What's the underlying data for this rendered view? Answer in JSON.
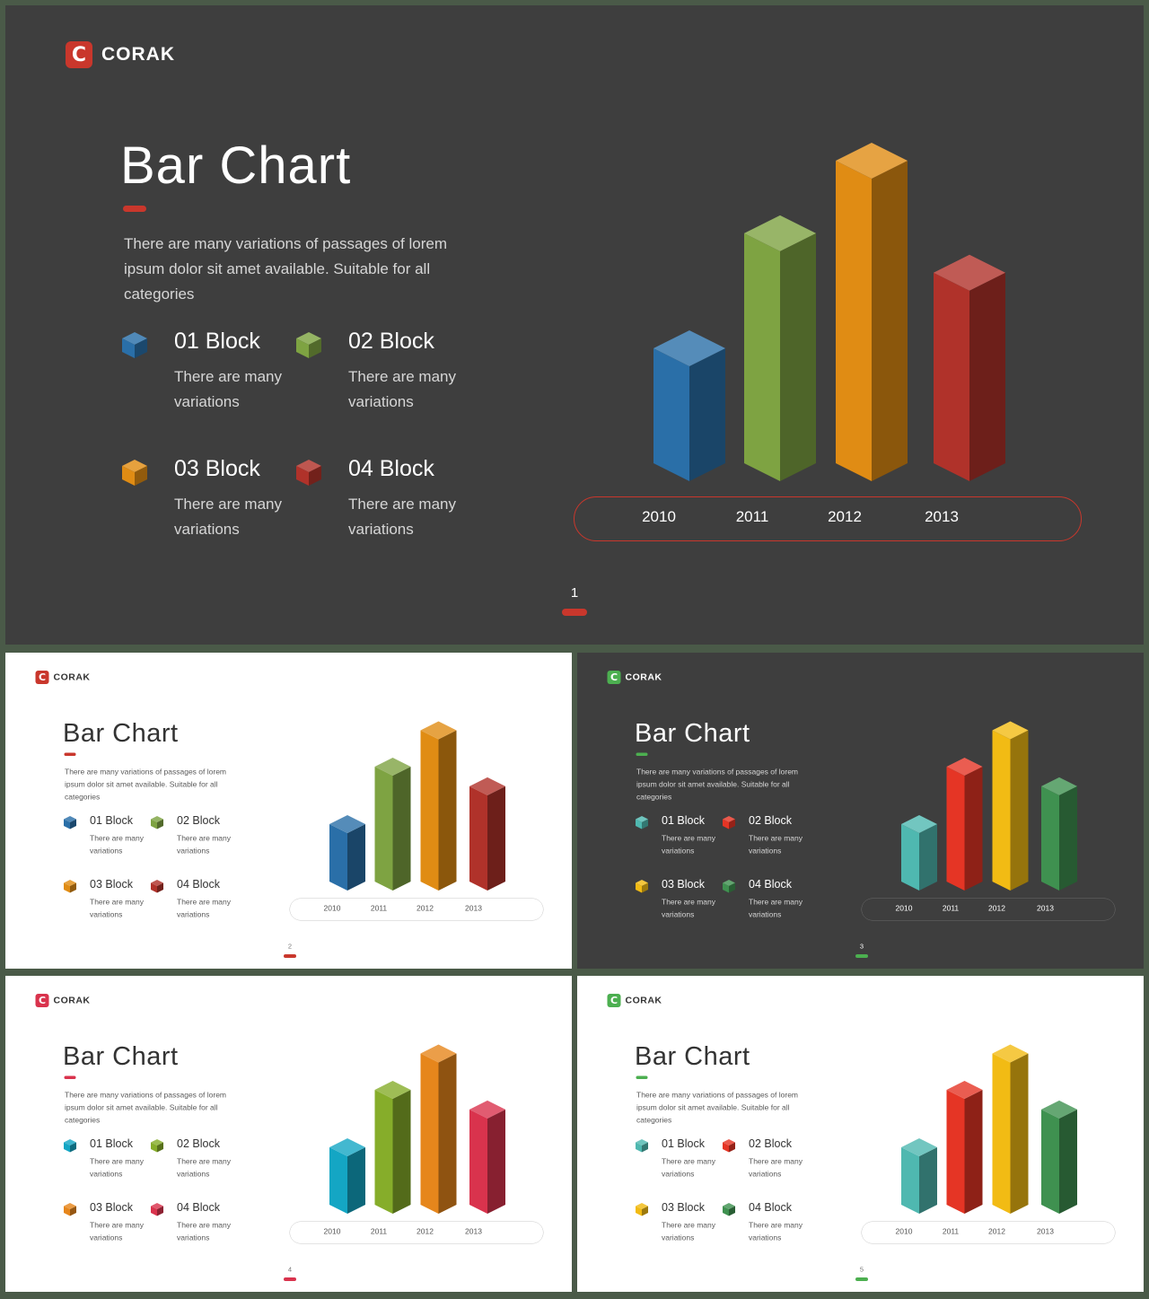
{
  "slides": [
    {
      "page": "1",
      "theme": "dark",
      "logo": {
        "mark": "C",
        "text": "CORAK",
        "mark_color": "#c9372c"
      },
      "title": "Bar Chart",
      "accent": "#c9372c",
      "description": "There are many variations of passages of lorem ipsum dolor sit amet available. Suitable for all categories",
      "blocks": [
        {
          "title": "01 Block",
          "text": "There are many variations",
          "color": "#2a6fa8"
        },
        {
          "title": "02 Block",
          "text": "There are many variations",
          "color": "#7ea342"
        },
        {
          "title": "03 Block",
          "text": "There are many variations",
          "color": "#e08c14"
        },
        {
          "title": "04 Block",
          "text": "There are many variations",
          "color": "#b0322a"
        }
      ]
    },
    {
      "page": "2",
      "theme": "light",
      "logo": {
        "mark": "C",
        "text": "CORAK",
        "mark_color": "#c9372c"
      },
      "title": "Bar Chart",
      "accent": "#c9372c",
      "description": "There are many variations of passages of lorem ipsum dolor sit amet available. Suitable for all categories",
      "blocks": [
        {
          "title": "01 Block",
          "text": "There are many variations",
          "color": "#2a6fa8"
        },
        {
          "title": "02 Block",
          "text": "There are many variations",
          "color": "#7ea342"
        },
        {
          "title": "03 Block",
          "text": "There are many variations",
          "color": "#e08c14"
        },
        {
          "title": "04 Block",
          "text": "There are many variations",
          "color": "#b0322a"
        }
      ]
    },
    {
      "page": "3",
      "theme": "dark",
      "logo": {
        "mark": "C",
        "text": "CORAK",
        "mark_color": "#4caf50"
      },
      "title": "Bar Chart",
      "accent": "#4caf50",
      "description": "There are many variations of passages of lorem ipsum dolor sit amet available. Suitable for all categories",
      "blocks": [
        {
          "title": "01 Block",
          "text": "There are many variations",
          "color": "#4fb8b0"
        },
        {
          "title": "02 Block",
          "text": "There are many variations",
          "color": "#e53525"
        },
        {
          "title": "03 Block",
          "text": "There are many variations",
          "color": "#f2bb14"
        },
        {
          "title": "04 Block",
          "text": "There are many variations",
          "color": "#3f9150"
        }
      ]
    },
    {
      "page": "4",
      "theme": "light",
      "logo": {
        "mark": "C",
        "text": "CORAK",
        "mark_color": "#d9334d"
      },
      "title": "Bar Chart",
      "accent": "#d9334d",
      "description": "There are many variations of passages of lorem ipsum dolor sit amet available. Suitable for all categories",
      "blocks": [
        {
          "title": "01 Block",
          "text": "There are many variations",
          "color": "#14a6c4"
        },
        {
          "title": "02 Block",
          "text": "There are many variations",
          "color": "#86ad2a"
        },
        {
          "title": "03 Block",
          "text": "There are many variations",
          "color": "#e6861c"
        },
        {
          "title": "04 Block",
          "text": "There are many variations",
          "color": "#d9334d"
        }
      ]
    },
    {
      "page": "5",
      "theme": "light",
      "logo": {
        "mark": "C",
        "text": "CORAK",
        "mark_color": "#4caf50"
      },
      "title": "Bar Chart",
      "accent": "#4caf50",
      "description": "There are many variations of passages of lorem ipsum dolor sit amet available. Suitable for all categories",
      "blocks": [
        {
          "title": "01 Block",
          "text": "There are many variations",
          "color": "#4fb8b0"
        },
        {
          "title": "02 Block",
          "text": "There are many variations",
          "color": "#e53525"
        },
        {
          "title": "03 Block",
          "text": "There are many variations",
          "color": "#f2bb14"
        },
        {
          "title": "04 Block",
          "text": "There are many variations",
          "color": "#3f9150"
        }
      ]
    }
  ],
  "chart_data": {
    "type": "bar",
    "categories": [
      "2010",
      "2011",
      "2012",
      "2013"
    ],
    "values": [
      38,
      76,
      100,
      63
    ],
    "ylim": [
      0,
      100
    ],
    "series_labels": [
      "01 Block",
      "02 Block",
      "03 Block",
      "04 Block"
    ],
    "legend_position": "left",
    "grid": false
  }
}
